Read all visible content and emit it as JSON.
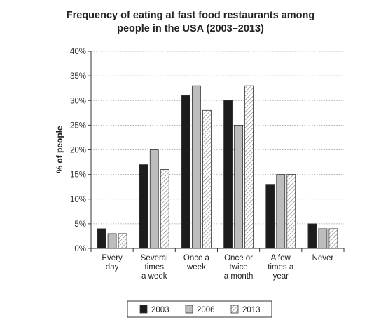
{
  "chart_data": {
    "type": "bar",
    "title": [
      "Frequency of eating at fast food restaurants among",
      "people in the USA (2003–2013)"
    ],
    "ylabel": "% of people",
    "xlabel": "",
    "ylim": [
      0,
      40
    ],
    "yticks": [
      "0%",
      "5%",
      "10%",
      "15%",
      "20%",
      "25%",
      "30%",
      "35%",
      "40%"
    ],
    "grid": "horizontal dotted",
    "legend_position": "bottom",
    "categories": [
      [
        "Every",
        "day"
      ],
      [
        "Several",
        "times",
        "a week"
      ],
      [
        "Once a",
        "week"
      ],
      [
        "Once or",
        "twice",
        "a month"
      ],
      [
        "A few",
        "times a",
        "year"
      ],
      [
        "Never"
      ]
    ],
    "series": [
      {
        "name": "2003",
        "values": [
          4,
          17,
          31,
          30,
          13,
          5
        ],
        "fill": "#1c1c1c"
      },
      {
        "name": "2006",
        "values": [
          3,
          20,
          33,
          25,
          15,
          4
        ],
        "fill": "#bdbdbd"
      },
      {
        "name": "2013",
        "values": [
          3,
          16,
          28,
          33,
          15,
          4
        ],
        "fill": "hatch"
      }
    ]
  }
}
